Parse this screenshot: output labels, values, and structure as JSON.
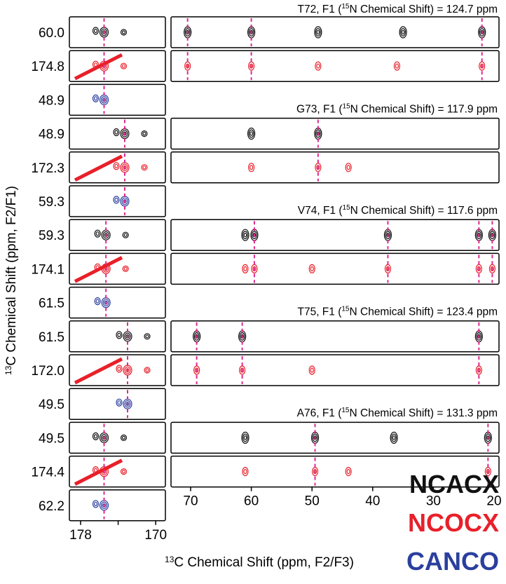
{
  "y_axis": {
    "isotope": "13",
    "text": "C Chemical Shift (ppm, F2/F1)"
  },
  "x_axis": {
    "isotope": "13",
    "text": "C Chemical Shift (ppm, F2/F3)"
  },
  "left_ticks": [
    "178",
    "170"
  ],
  "right_ticks": [
    "70",
    "60",
    "50",
    "40",
    "30",
    "20"
  ],
  "rows": [
    "60.0",
    "174.8",
    "48.9",
    "48.9",
    "172.3",
    "59.3",
    "59.3",
    "174.1",
    "61.5",
    "61.5",
    "172.0",
    "49.5",
    "49.5",
    "174.4",
    "62.2"
  ],
  "panels": [
    {
      "before": "T72, F1 (",
      "sup": "15",
      "after": "N Chemical Shift) = 124.7 ppm"
    },
    {
      "before": "G73, F1 (",
      "sup": "15",
      "after": "N Chemical Shift) = 117.9 ppm"
    },
    {
      "before": "V74, F1 (",
      "sup": "15",
      "after": "N Chemical Shift) = 117.6 ppm"
    },
    {
      "before": "T75, F1 (",
      "sup": "15",
      "after": "N Chemical Shift) = 123.4 ppm"
    },
    {
      "before": "A76, F1 (",
      "sup": "15",
      "after": "N Chemical Shift) = 131.3 ppm"
    }
  ],
  "legend": [
    "NCACX",
    "NCOCX",
    "CANCO"
  ]
}
